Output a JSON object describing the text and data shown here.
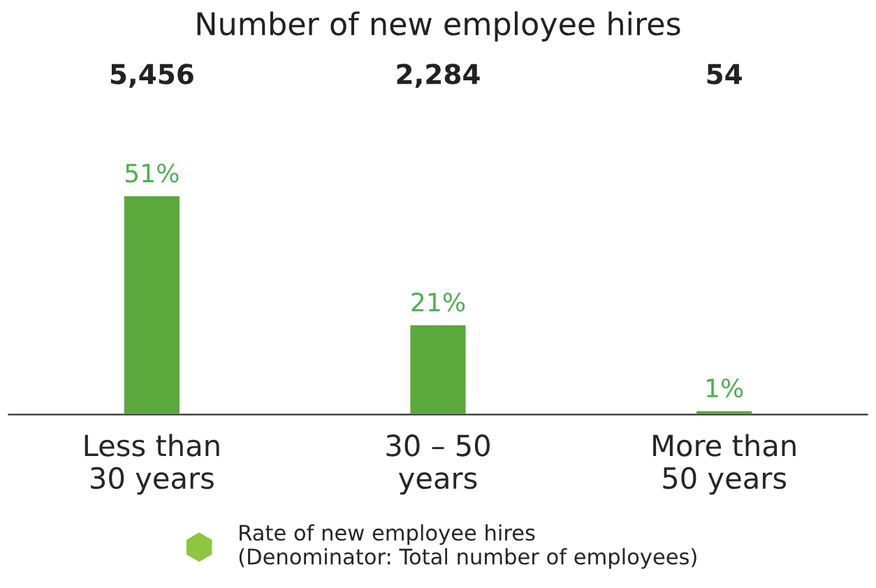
{
  "chart_data": {
    "type": "bar",
    "title": "Number of new employee hires",
    "categories": [
      "Less than\n30 years",
      "30 – 50\nyears",
      "More than\n50 years"
    ],
    "series": [
      {
        "name": "Rate of new employee hires\n(Denominator: Total number of employees)",
        "color": "#5ba83c",
        "values": [
          51,
          21,
          1
        ],
        "value_labels": [
          "51%",
          "21%",
          "1%"
        ]
      }
    ],
    "annotations": [
      "5,456",
      "2,284",
      "54"
    ],
    "legend": "bottom"
  }
}
